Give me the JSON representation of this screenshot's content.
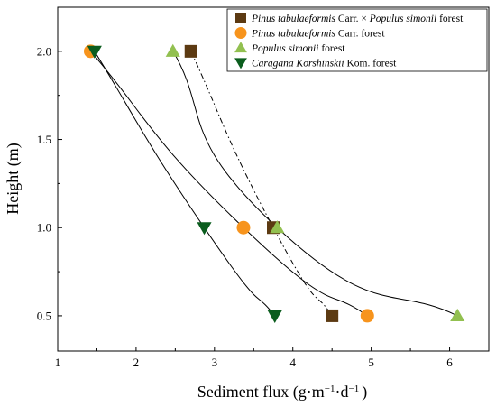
{
  "chart_data": {
    "type": "scatter",
    "xlabel": {
      "main": "Sediment flux (g·m",
      "exp1": "−1",
      "mid": "·d",
      "exp2": "−1",
      "tail": ")"
    },
    "ylabel": "Height (m)",
    "xlim": [
      1,
      6.5
    ],
    "ylim": [
      0.3,
      2.25
    ],
    "xticks": [
      1,
      2,
      3,
      4,
      5,
      6
    ],
    "yticks": [
      0.5,
      1.0,
      1.5,
      2.0
    ],
    "xtick_labels": [
      "1",
      "2",
      "3",
      "4",
      "5",
      "6"
    ],
    "ytick_labels": [
      "0.5",
      "1.0",
      "1.5",
      "2.0"
    ],
    "legend_position": "top-right",
    "series": [
      {
        "key": "mixed",
        "name_italic": "Pinus tabulaeformis",
        "name_rest": " Carr. × ",
        "name_italic2": "Populus simonii",
        "name_rest2": " forest",
        "marker": "square",
        "color": "#5c3a12",
        "line_style": "dashdot",
        "x": [
          2.7,
          3.75,
          4.5
        ],
        "y": [
          2.0,
          1.0,
          0.5
        ]
      },
      {
        "key": "pinus",
        "name_italic": "Pinus tabulaeformis",
        "name_rest": " Carr. forest",
        "marker": "circle",
        "color": "#f7941d",
        "line_style": "solid",
        "x": [
          1.42,
          3.37,
          4.95
        ],
        "y": [
          2.0,
          1.0,
          0.5
        ]
      },
      {
        "key": "populus",
        "name_italic": "Populus simonii",
        "name_rest": " forest",
        "marker": "triangle-up",
        "color": "#92c050",
        "line_style": "solid",
        "x": [
          2.47,
          3.8,
          6.1
        ],
        "y": [
          2.0,
          1.0,
          0.5
        ]
      },
      {
        "key": "caragana",
        "name_italic": "Caragana Korshinskii",
        "name_rest": " Kom. forest",
        "marker": "triangle-down",
        "color": "#0b5d1e",
        "line_style": "solid",
        "x": [
          1.47,
          2.87,
          3.77
        ],
        "y": [
          2.0,
          1.0,
          0.5
        ]
      }
    ]
  }
}
